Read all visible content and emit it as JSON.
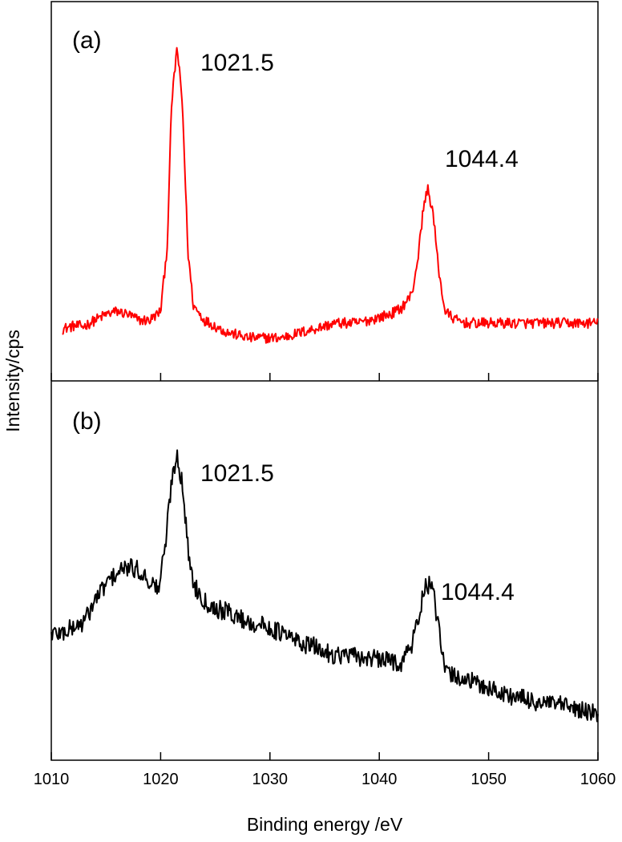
{
  "chart_data": {
    "type": "line",
    "xlabel": "Binding energy /eV",
    "ylabel": "Intensity/cps",
    "xlim": [
      1010,
      1060
    ],
    "x_ticks": [
      "1010",
      "1020",
      "1030",
      "1040",
      "1050",
      "1060"
    ],
    "y_tick_labels": false,
    "grid": false,
    "legend": "none",
    "panels": [
      {
        "label": "(a)",
        "color": "#ff0000",
        "peak_labels": [
          "1021.5",
          "1044.4"
        ],
        "anchors": [
          [
            1011,
            0.04
          ],
          [
            1012,
            0.05
          ],
          [
            1013,
            0.05
          ],
          [
            1014,
            0.07
          ],
          [
            1015,
            0.09
          ],
          [
            1016,
            0.1
          ],
          [
            1017,
            0.09
          ],
          [
            1018,
            0.07
          ],
          [
            1019,
            0.07
          ],
          [
            1020,
            0.1
          ],
          [
            1020.6,
            0.32
          ],
          [
            1021.0,
            0.8
          ],
          [
            1021.5,
            1.0
          ],
          [
            1022.0,
            0.8
          ],
          [
            1022.5,
            0.3
          ],
          [
            1023,
            0.12
          ],
          [
            1024,
            0.07
          ],
          [
            1025,
            0.05
          ],
          [
            1026,
            0.03
          ],
          [
            1027,
            0.02
          ],
          [
            1028,
            0.01
          ],
          [
            1029,
            0.01
          ],
          [
            1030,
            0.01
          ],
          [
            1031,
            0.01
          ],
          [
            1032,
            0.02
          ],
          [
            1033,
            0.03
          ],
          [
            1034,
            0.04
          ],
          [
            1035,
            0.05
          ],
          [
            1036,
            0.06
          ],
          [
            1037,
            0.06
          ],
          [
            1038,
            0.06
          ],
          [
            1039,
            0.07
          ],
          [
            1040,
            0.08
          ],
          [
            1041,
            0.09
          ],
          [
            1042,
            0.11
          ],
          [
            1043,
            0.16
          ],
          [
            1043.6,
            0.3
          ],
          [
            1044.0,
            0.44
          ],
          [
            1044.4,
            0.52
          ],
          [
            1044.9,
            0.44
          ],
          [
            1045.4,
            0.25
          ],
          [
            1046,
            0.1
          ],
          [
            1047,
            0.07
          ],
          [
            1048,
            0.06
          ],
          [
            1049,
            0.06
          ],
          [
            1050,
            0.06
          ],
          [
            1052,
            0.06
          ],
          [
            1054,
            0.06
          ],
          [
            1056,
            0.06
          ],
          [
            1058,
            0.06
          ],
          [
            1060,
            0.06
          ]
        ]
      },
      {
        "label": "(b)",
        "color": "#000000",
        "peak_labels": [
          "1021.5",
          "1044.4"
        ],
        "anchors": [
          [
            1010,
            0.34
          ],
          [
            1011,
            0.34
          ],
          [
            1012,
            0.36
          ],
          [
            1013,
            0.38
          ],
          [
            1014,
            0.46
          ],
          [
            1015,
            0.52
          ],
          [
            1016,
            0.56
          ],
          [
            1017,
            0.58
          ],
          [
            1018,
            0.57
          ],
          [
            1019,
            0.53
          ],
          [
            1019.8,
            0.5
          ],
          [
            1020.4,
            0.65
          ],
          [
            1021.0,
            0.9
          ],
          [
            1021.5,
            1.0
          ],
          [
            1022.0,
            0.88
          ],
          [
            1022.5,
            0.65
          ],
          [
            1023,
            0.52
          ],
          [
            1024,
            0.46
          ],
          [
            1025,
            0.43
          ],
          [
            1026,
            0.42
          ],
          [
            1027,
            0.4
          ],
          [
            1028,
            0.38
          ],
          [
            1029,
            0.37
          ],
          [
            1030,
            0.36
          ],
          [
            1031,
            0.34
          ],
          [
            1032,
            0.32
          ],
          [
            1033,
            0.3
          ],
          [
            1034,
            0.29
          ],
          [
            1035,
            0.27
          ],
          [
            1036,
            0.26
          ],
          [
            1037,
            0.26
          ],
          [
            1038,
            0.25
          ],
          [
            1039,
            0.25
          ],
          [
            1040,
            0.24
          ],
          [
            1041,
            0.24
          ],
          [
            1042,
            0.23
          ],
          [
            1043,
            0.3
          ],
          [
            1043.6,
            0.4
          ],
          [
            1044.0,
            0.48
          ],
          [
            1044.4,
            0.52
          ],
          [
            1044.9,
            0.5
          ],
          [
            1045.4,
            0.36
          ],
          [
            1046,
            0.2
          ],
          [
            1047,
            0.18
          ],
          [
            1048,
            0.17
          ],
          [
            1049,
            0.15
          ],
          [
            1050,
            0.14
          ],
          [
            1051,
            0.12
          ],
          [
            1052,
            0.11
          ],
          [
            1053,
            0.1
          ],
          [
            1054,
            0.09
          ],
          [
            1055,
            0.08
          ],
          [
            1056,
            0.08
          ],
          [
            1057,
            0.07
          ],
          [
            1058,
            0.06
          ],
          [
            1059,
            0.05
          ],
          [
            1060,
            0.04
          ]
        ]
      }
    ]
  }
}
